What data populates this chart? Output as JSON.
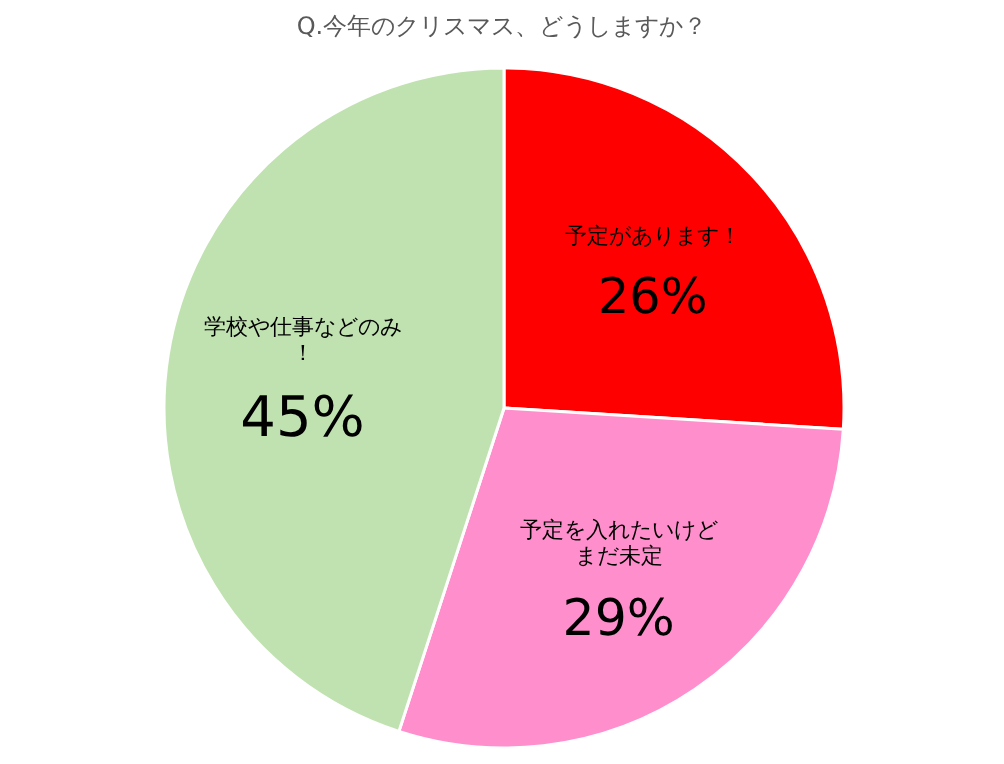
{
  "chart_data": {
    "type": "pie",
    "title": "Q.今年のクリスマス、どうしますか？",
    "categories": [
      "予定があります！",
      "予定を入れたいけどまだ未定",
      "学校や仕事などのみ！"
    ],
    "values": [
      26,
      29,
      45
    ],
    "colors": [
      "#ff0000",
      "#ff8fcc",
      "#c0e2b0"
    ],
    "value_labels": [
      "26%",
      "29%",
      "45%"
    ]
  }
}
